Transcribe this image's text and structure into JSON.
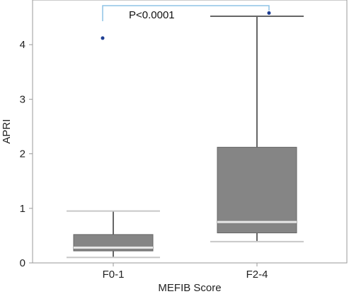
{
  "chart_data": {
    "type": "box",
    "xlabel": "MEFIB Score",
    "ylabel": "APRI",
    "ylim": [
      0,
      4.65
    ],
    "yticks": [
      0,
      1,
      2,
      3,
      4
    ],
    "categories": [
      "F0-1",
      "F2-4"
    ],
    "boxes": [
      {
        "category": "F0-1",
        "whisker_low": 0.1,
        "q1": 0.22,
        "median": 0.28,
        "q3": 0.52,
        "whisker_high": 0.95,
        "outliers": [
          4.12
        ]
      },
      {
        "category": "F2-4",
        "whisker_low": 0.39,
        "q1": 0.55,
        "median": 0.75,
        "q3": 2.12,
        "whisker_high": 4.52,
        "outliers": [
          4.58
        ]
      }
    ],
    "annotation": "P<0.0001",
    "colors": {
      "box": "#858585",
      "median": "#e8e8e8",
      "whisker": "#666666",
      "cap": "#c8c8c8",
      "outlier": "#1f3f93",
      "bracket": "#8ec3e6",
      "frame": "#9a9a9a"
    }
  }
}
